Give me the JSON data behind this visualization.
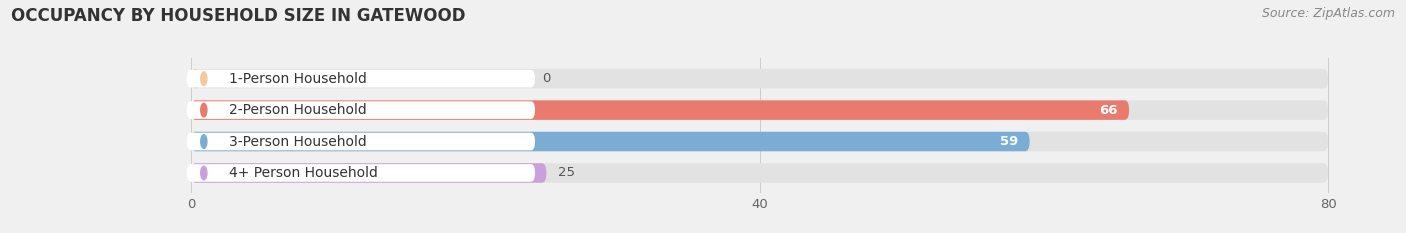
{
  "title": "OCCUPANCY BY HOUSEHOLD SIZE IN GATEWOOD",
  "source": "Source: ZipAtlas.com",
  "categories": [
    "1-Person Household",
    "2-Person Household",
    "3-Person Household",
    "4+ Person Household"
  ],
  "values": [
    0,
    66,
    59,
    25
  ],
  "bar_colors": [
    "#f5c9a0",
    "#e87b6e",
    "#7badd4",
    "#c9a0dc"
  ],
  "xlim": [
    0,
    80
  ],
  "xticks": [
    0,
    40,
    80
  ],
  "bar_height": 0.62,
  "background_color": "#f0f0f0",
  "bar_bg_color": "#e2e2e2",
  "title_fontsize": 12,
  "label_fontsize": 10,
  "value_fontsize": 9.5,
  "source_fontsize": 9
}
